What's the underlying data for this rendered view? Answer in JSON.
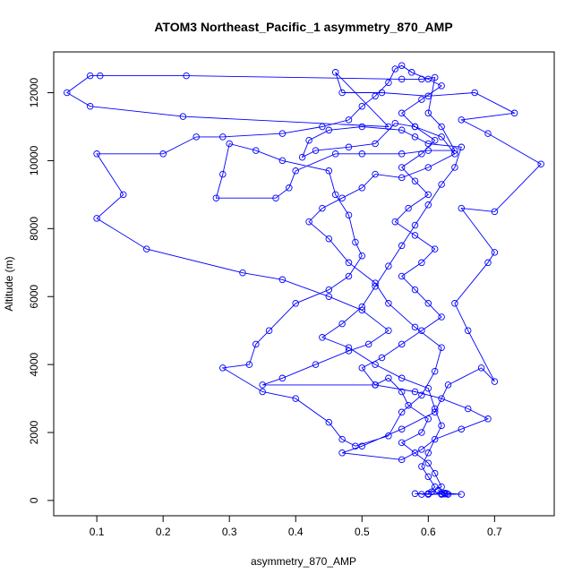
{
  "chart_data": {
    "type": "line",
    "title": "ATOM3 Northeast_Pacific_1 asymmetry_870_AMP",
    "xlabel": "asymmetry_870_AMP",
    "ylabel": "Altitude (m)",
    "xlim": [
      0.035,
      0.79
    ],
    "ylim": [
      -450,
      13200
    ],
    "x_ticks": [
      0.1,
      0.2,
      0.3,
      0.4,
      0.5,
      0.6,
      0.7
    ],
    "x_tick_labels": [
      "0.1",
      "0.2",
      "0.3",
      "0.4",
      "0.5",
      "0.6",
      "0.7"
    ],
    "y_ticks": [
      0,
      2000,
      4000,
      6000,
      8000,
      10000,
      12000
    ],
    "y_tick_labels": [
      "0",
      "2000",
      "4000",
      "6000",
      "8000",
      "10000",
      "12000"
    ],
    "grid": false,
    "marker": "open-circle",
    "series": [
      {
        "color": "#0000ff",
        "points": [
          [
            0.63,
            180
          ],
          [
            0.625,
            220
          ],
          [
            0.615,
            300
          ],
          [
            0.62,
            200
          ],
          [
            0.6,
            180
          ],
          [
            0.58,
            200
          ],
          [
            0.65,
            180
          ],
          [
            0.605,
            250
          ],
          [
            0.62,
            400
          ],
          [
            0.61,
            800
          ],
          [
            0.6,
            1100
          ],
          [
            0.58,
            1400
          ],
          [
            0.56,
            1700
          ],
          [
            0.59,
            2000
          ],
          [
            0.6,
            2400
          ],
          [
            0.57,
            2800
          ],
          [
            0.56,
            3200
          ],
          [
            0.54,
            3600
          ],
          [
            0.52,
            3400
          ],
          [
            0.5,
            3900
          ],
          [
            0.53,
            4200
          ],
          [
            0.56,
            4600
          ],
          [
            0.59,
            5000
          ],
          [
            0.62,
            5400
          ],
          [
            0.6,
            5800
          ],
          [
            0.58,
            6200
          ],
          [
            0.56,
            6600
          ],
          [
            0.59,
            7000
          ],
          [
            0.61,
            7400
          ],
          [
            0.58,
            7800
          ],
          [
            0.55,
            8200
          ],
          [
            0.57,
            8600
          ],
          [
            0.6,
            9000
          ],
          [
            0.58,
            9400
          ],
          [
            0.56,
            9800
          ],
          [
            0.59,
            10200
          ],
          [
            0.61,
            10600
          ],
          [
            0.58,
            11000
          ],
          [
            0.56,
            11400
          ],
          [
            0.59,
            11800
          ],
          [
            0.62,
            12200
          ],
          [
            0.6,
            12400
          ],
          [
            0.575,
            12600
          ],
          [
            0.56,
            12800
          ],
          [
            0.55,
            12700
          ],
          [
            0.54,
            12300
          ],
          [
            0.52,
            11900
          ],
          [
            0.5,
            11600
          ],
          [
            0.48,
            11200
          ],
          [
            0.44,
            11000
          ],
          [
            0.38,
            10800
          ],
          [
            0.29,
            10700
          ],
          [
            0.25,
            10700
          ],
          [
            0.2,
            10200
          ],
          [
            0.1,
            10200
          ],
          [
            0.14,
            9000
          ],
          [
            0.1,
            8300
          ],
          [
            0.175,
            7400
          ],
          [
            0.32,
            6700
          ],
          [
            0.38,
            6500
          ],
          [
            0.45,
            6000
          ],
          [
            0.5,
            5600
          ],
          [
            0.54,
            5000
          ],
          [
            0.51,
            4600
          ],
          [
            0.48,
            4400
          ],
          [
            0.43,
            4000
          ],
          [
            0.38,
            3600
          ],
          [
            0.35,
            3400
          ],
          [
            0.52,
            3400
          ],
          [
            0.58,
            3200
          ],
          [
            0.62,
            3000
          ],
          [
            0.66,
            2700
          ],
          [
            0.69,
            2400
          ],
          [
            0.65,
            2100
          ],
          [
            0.61,
            1800
          ],
          [
            0.59,
            1500
          ],
          [
            0.56,
            1200
          ],
          [
            0.47,
            1400
          ],
          [
            0.5,
            1600
          ],
          [
            0.56,
            2100
          ],
          [
            0.61,
            2600
          ],
          [
            0.63,
            3400
          ],
          [
            0.68,
            3900
          ],
          [
            0.7,
            3500
          ],
          [
            0.66,
            5000
          ],
          [
            0.64,
            5800
          ],
          [
            0.69,
            7000
          ],
          [
            0.7,
            7300
          ],
          [
            0.65,
            8600
          ],
          [
            0.7,
            8500
          ],
          [
            0.77,
            9900
          ],
          [
            0.69,
            10800
          ],
          [
            0.65,
            11200
          ],
          [
            0.73,
            11400
          ],
          [
            0.67,
            12000
          ],
          [
            0.6,
            11900
          ],
          [
            0.53,
            12000
          ],
          [
            0.47,
            12000
          ],
          [
            0.46,
            12600
          ],
          [
            0.54,
            11000
          ],
          [
            0.23,
            11300
          ],
          [
            0.09,
            11600
          ],
          [
            0.055,
            12000
          ],
          [
            0.09,
            12500
          ],
          [
            0.105,
            12500
          ],
          [
            0.235,
            12500
          ],
          [
            0.56,
            12400
          ],
          [
            0.59,
            12400
          ],
          [
            0.61,
            12450
          ],
          [
            0.6,
            11400
          ],
          [
            0.62,
            11000
          ],
          [
            0.64,
            10300
          ],
          [
            0.6,
            10300
          ],
          [
            0.56,
            10200
          ],
          [
            0.5,
            10200
          ],
          [
            0.46,
            10200
          ],
          [
            0.4,
            9700
          ],
          [
            0.39,
            9200
          ],
          [
            0.37,
            8900
          ],
          [
            0.28,
            8900
          ],
          [
            0.29,
            9600
          ],
          [
            0.3,
            10500
          ],
          [
            0.34,
            10300
          ],
          [
            0.38,
            10000
          ],
          [
            0.45,
            9700
          ],
          [
            0.46,
            9000
          ],
          [
            0.48,
            8400
          ],
          [
            0.49,
            7600
          ],
          [
            0.5,
            7200
          ],
          [
            0.48,
            6600
          ],
          [
            0.45,
            6200
          ],
          [
            0.4,
            5800
          ],
          [
            0.36,
            5000
          ],
          [
            0.34,
            4600
          ],
          [
            0.33,
            4000
          ],
          [
            0.29,
            3900
          ],
          [
            0.35,
            3200
          ],
          [
            0.4,
            3000
          ],
          [
            0.45,
            2300
          ],
          [
            0.47,
            1800
          ],
          [
            0.49,
            1600
          ],
          [
            0.54,
            1900
          ],
          [
            0.56,
            2600
          ],
          [
            0.59,
            3100
          ],
          [
            0.61,
            3800
          ],
          [
            0.62,
            4500
          ],
          [
            0.58,
            5100
          ],
          [
            0.54,
            5800
          ],
          [
            0.52,
            6400
          ],
          [
            0.48,
            7000
          ],
          [
            0.45,
            7700
          ],
          [
            0.42,
            8200
          ],
          [
            0.44,
            8600
          ],
          [
            0.47,
            8900
          ],
          [
            0.5,
            9200
          ],
          [
            0.52,
            9600
          ],
          [
            0.56,
            9500
          ],
          [
            0.6,
            9800
          ],
          [
            0.64,
            10200
          ],
          [
            0.62,
            10700
          ],
          [
            0.58,
            11000
          ],
          [
            0.55,
            11100
          ],
          [
            0.52,
            10500
          ],
          [
            0.48,
            10400
          ],
          [
            0.43,
            10300
          ],
          [
            0.41,
            10100
          ],
          [
            0.42,
            10600
          ],
          [
            0.45,
            10900
          ],
          [
            0.5,
            11000
          ],
          [
            0.56,
            10900
          ],
          [
            0.58,
            10700
          ],
          [
            0.6,
            10500
          ],
          [
            0.65,
            10400
          ],
          [
            0.64,
            9800
          ],
          [
            0.62,
            9300
          ],
          [
            0.6,
            8700
          ],
          [
            0.58,
            8100
          ],
          [
            0.56,
            7500
          ],
          [
            0.54,
            6900
          ],
          [
            0.52,
            6300
          ],
          [
            0.5,
            5700
          ],
          [
            0.47,
            5200
          ],
          [
            0.44,
            4800
          ],
          [
            0.48,
            4500
          ],
          [
            0.52,
            4000
          ],
          [
            0.56,
            3600
          ],
          [
            0.6,
            3300
          ],
          [
            0.61,
            2700
          ],
          [
            0.62,
            2200
          ],
          [
            0.6,
            1400
          ],
          [
            0.59,
            1000
          ],
          [
            0.6,
            700
          ],
          [
            0.61,
            400
          ],
          [
            0.6,
            200
          ],
          [
            0.59,
            180
          ],
          [
            0.62,
            180
          ],
          [
            0.625,
            190
          ],
          [
            0.628,
            200
          ]
        ]
      }
    ]
  }
}
